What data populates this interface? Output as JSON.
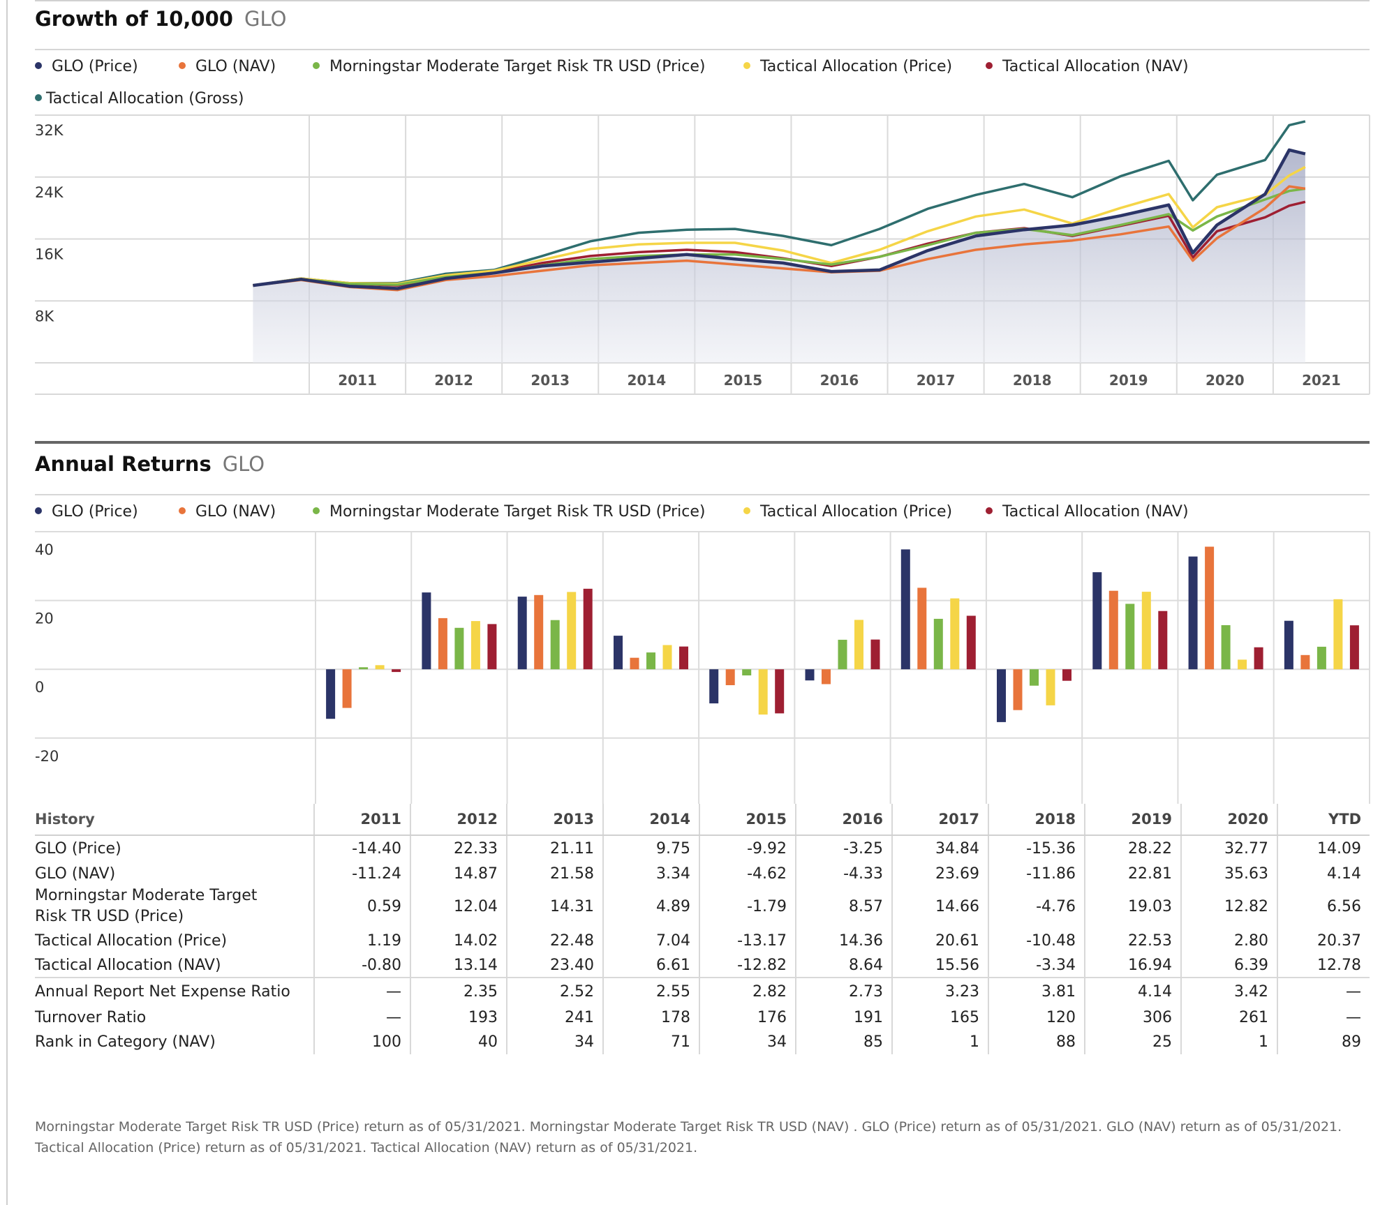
{
  "growth": {
    "title": "Growth of 10,000",
    "subtitle": "GLO",
    "legend": [
      {
        "label": "GLO (Price)",
        "color": "#2b3467"
      },
      {
        "label": "GLO (NAV)",
        "color": "#e8743b"
      },
      {
        "label": "Morningstar Moderate Target Risk TR USD (Price)",
        "color": "#7ab648"
      },
      {
        "label": "Tactical Allocation (Price)",
        "color": "#f5d547"
      },
      {
        "label": "Tactical Allocation (NAV)",
        "color": "#9e1f32"
      },
      {
        "label": "Tactical Allocation (Gross)",
        "color": "#2e6e6e"
      }
    ],
    "y_ticks": [
      "32K",
      "24K",
      "16K",
      "8K"
    ],
    "x_ticks": [
      "2011",
      "2012",
      "2013",
      "2014",
      "2015",
      "2016",
      "2017",
      "2018",
      "2019",
      "2020",
      "2021"
    ]
  },
  "annual": {
    "title": "Annual Returns",
    "subtitle": "GLO",
    "legend": [
      {
        "label": "GLO (Price)",
        "color": "#2b3467"
      },
      {
        "label": "GLO (NAV)",
        "color": "#e8743b"
      },
      {
        "label": "Morningstar Moderate Target Risk TR USD (Price)",
        "color": "#7ab648"
      },
      {
        "label": "Tactical Allocation (Price)",
        "color": "#f5d547"
      },
      {
        "label": "Tactical Allocation (NAV)",
        "color": "#9e1f32"
      }
    ],
    "y_ticks": [
      "40",
      "20",
      "0",
      "-20"
    ]
  },
  "chart_data": [
    {
      "type": "line",
      "title": "Growth of 10,000",
      "ylim": [
        0,
        32000
      ],
      "x": [
        "2010-06",
        "2010-12",
        "2011-06",
        "2011-12",
        "2012-06",
        "2012-12",
        "2013-06",
        "2013-12",
        "2014-06",
        "2014-12",
        "2015-06",
        "2015-12",
        "2016-06",
        "2016-12",
        "2017-06",
        "2017-12",
        "2018-06",
        "2018-12",
        "2019-06",
        "2019-12",
        "2020-03",
        "2020-06",
        "2020-12",
        "2021-03",
        "2021-05"
      ],
      "series": [
        {
          "name": "GLO (Price)",
          "color": "#2b3467",
          "values": [
            10000,
            10800,
            9900,
            9600,
            10900,
            11600,
            12500,
            13000,
            13500,
            14000,
            13400,
            12900,
            11800,
            12000,
            14500,
            16400,
            17200,
            17800,
            19000,
            20400,
            14200,
            17800,
            21800,
            27500,
            27000
          ]
        },
        {
          "name": "GLO (NAV)",
          "color": "#e8743b",
          "values": [
            10000,
            10700,
            9800,
            9400,
            10700,
            11200,
            11900,
            12600,
            12900,
            13200,
            12700,
            12200,
            11700,
            11900,
            13400,
            14600,
            15300,
            15800,
            16600,
            17600,
            13200,
            16100,
            20000,
            22800,
            22500
          ]
        },
        {
          "name": "Morningstar Moderate Target Risk TR USD (Price)",
          "color": "#7ab648",
          "values": [
            10000,
            10800,
            10200,
            10100,
            11100,
            11600,
            12600,
            13400,
            13800,
            14000,
            14000,
            13400,
            12700,
            13700,
            15200,
            16800,
            17300,
            16500,
            17800,
            19200,
            17100,
            18900,
            21100,
            22200,
            22500
          ]
        },
        {
          "name": "Tactical Allocation (Price)",
          "color": "#f5d547",
          "values": [
            10000,
            10900,
            10300,
            10200,
            11300,
            11900,
            13300,
            14700,
            15300,
            15500,
            15500,
            14500,
            12900,
            14600,
            17000,
            18900,
            19800,
            18000,
            20000,
            21800,
            17500,
            20100,
            21700,
            24200,
            25300
          ]
        },
        {
          "name": "Tactical Allocation (NAV)",
          "color": "#9e1f32",
          "values": [
            10000,
            10800,
            10200,
            10000,
            11100,
            11700,
            12900,
            13800,
            14300,
            14600,
            14300,
            13500,
            12500,
            13700,
            15400,
            16800,
            17400,
            16400,
            17700,
            19000,
            13600,
            17000,
            18800,
            20300,
            20800
          ]
        },
        {
          "name": "Tactical Allocation (Gross)",
          "color": "#2e6e6e",
          "values": [
            10000,
            10900,
            10300,
            10300,
            11500,
            12000,
            13800,
            15700,
            16800,
            17200,
            17300,
            16400,
            15200,
            17300,
            19900,
            21700,
            23100,
            21400,
            24100,
            26100,
            21000,
            24300,
            26200,
            30700,
            31200
          ]
        }
      ]
    },
    {
      "type": "bar",
      "title": "Annual Returns",
      "ylim": [
        -30,
        40
      ],
      "categories": [
        "2011",
        "2012",
        "2013",
        "2014",
        "2015",
        "2016",
        "2017",
        "2018",
        "2019",
        "2020",
        "YTD"
      ],
      "series": [
        {
          "name": "GLO (Price)",
          "color": "#2b3467",
          "values": [
            -14.4,
            22.33,
            21.11,
            9.75,
            -9.92,
            -3.25,
            34.84,
            -15.36,
            28.22,
            32.77,
            14.09
          ]
        },
        {
          "name": "GLO (NAV)",
          "color": "#e8743b",
          "values": [
            -11.24,
            14.87,
            21.58,
            3.34,
            -4.62,
            -4.33,
            23.69,
            -11.86,
            22.81,
            35.63,
            4.14
          ]
        },
        {
          "name": "Morningstar Moderate Target Risk TR USD (Price)",
          "color": "#7ab648",
          "values": [
            0.59,
            12.04,
            14.31,
            4.89,
            -1.79,
            8.57,
            14.66,
            -4.76,
            19.03,
            12.82,
            6.56
          ]
        },
        {
          "name": "Tactical Allocation (Price)",
          "color": "#f5d547",
          "values": [
            1.19,
            14.02,
            22.48,
            7.04,
            -13.17,
            14.36,
            20.61,
            -10.48,
            22.53,
            2.8,
            20.37
          ]
        },
        {
          "name": "Tactical Allocation (NAV)",
          "color": "#9e1f32",
          "values": [
            -0.8,
            13.14,
            23.4,
            6.61,
            -12.82,
            8.64,
            15.56,
            -3.34,
            16.94,
            6.39,
            12.78
          ]
        }
      ]
    }
  ],
  "history": {
    "header": [
      "History",
      "2011",
      "2012",
      "2013",
      "2014",
      "2015",
      "2016",
      "2017",
      "2018",
      "2019",
      "2020",
      "YTD"
    ],
    "rows": [
      {
        "label": "GLO (Price)",
        "values": [
          "-14.40",
          "22.33",
          "21.11",
          "9.75",
          "-9.92",
          "-3.25",
          "34.84",
          "-15.36",
          "28.22",
          "32.77",
          "14.09"
        ]
      },
      {
        "label": "GLO (NAV)",
        "values": [
          "-11.24",
          "14.87",
          "21.58",
          "3.34",
          "-4.62",
          "-4.33",
          "23.69",
          "-11.86",
          "22.81",
          "35.63",
          "4.14"
        ]
      },
      {
        "label": "Morningstar Moderate Target Risk TR USD (Price)",
        "values": [
          "0.59",
          "12.04",
          "14.31",
          "4.89",
          "-1.79",
          "8.57",
          "14.66",
          "-4.76",
          "19.03",
          "12.82",
          "6.56"
        ]
      },
      {
        "label": "Tactical Allocation (Price)",
        "values": [
          "1.19",
          "14.02",
          "22.48",
          "7.04",
          "-13.17",
          "14.36",
          "20.61",
          "-10.48",
          "22.53",
          "2.80",
          "20.37"
        ]
      },
      {
        "label": "Tactical Allocation (NAV)",
        "values": [
          "-0.80",
          "13.14",
          "23.40",
          "6.61",
          "-12.82",
          "8.64",
          "15.56",
          "-3.34",
          "16.94",
          "6.39",
          "12.78"
        ]
      },
      {
        "label": "Annual Report Net Expense Ratio",
        "values": [
          "—",
          "2.35",
          "2.52",
          "2.55",
          "2.82",
          "2.73",
          "3.23",
          "3.81",
          "4.14",
          "3.42",
          "—"
        ]
      },
      {
        "label": "Turnover Ratio",
        "values": [
          "—",
          "193",
          "241",
          "178",
          "176",
          "191",
          "165",
          "120",
          "306",
          "261",
          "—"
        ]
      },
      {
        "label": "Rank in Category (NAV)",
        "values": [
          "100",
          "40",
          "34",
          "71",
          "34",
          "85",
          "1",
          "88",
          "25",
          "1",
          "89"
        ]
      }
    ]
  },
  "footnote": "Morningstar Moderate Target Risk TR USD (Price) return as of 05/31/2021.  Morningstar Moderate Target Risk TR USD (NAV) .  GLO (Price) return as of 05/31/2021.  GLO (NAV) return as of 05/31/2021.  Tactical Allocation (Price) return as of 05/31/2021.  Tactical Allocation (NAV) return as of 05/31/2021."
}
